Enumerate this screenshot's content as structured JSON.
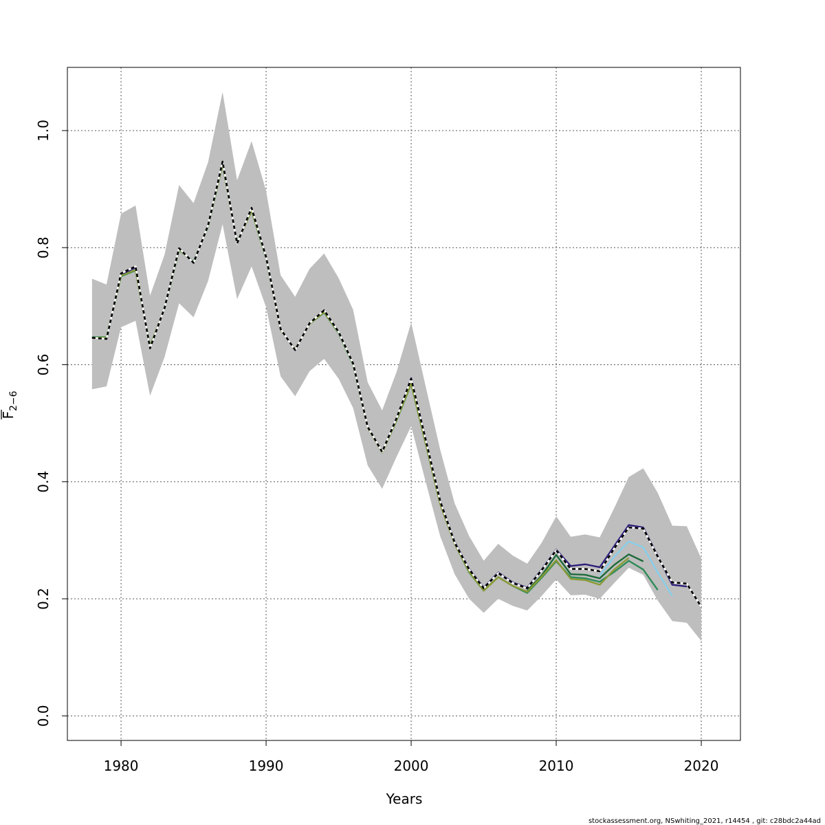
{
  "chart_data": {
    "type": "line",
    "xlabel": "Years",
    "ylabel_main": "F",
    "ylabel_sub": "2−6",
    "footer": "stockassessment.org, NSwhiting_2021, r14454 , git: c28bdc2a44ad",
    "xlim": [
      1976.3,
      2022.7
    ],
    "ylim": [
      -0.042,
      1.108
    ],
    "x_ticks": [
      1980,
      1990,
      2000,
      2010,
      2020
    ],
    "x_tick_labels": [
      "1980",
      "1990",
      "2000",
      "2010",
      "2020"
    ],
    "y_ticks": [
      0,
      0.2,
      0.4,
      0.6,
      0.8,
      1.0
    ],
    "y_tick_labels": [
      "0.0",
      "0.2",
      "0.4",
      "0.6",
      "0.8",
      "1.0"
    ],
    "grid": true,
    "ci_band": {
      "color": "#bebebe",
      "x": [
        1978,
        1979,
        1980,
        1981,
        1982,
        1983,
        1984,
        1985,
        1986,
        1987,
        1988,
        1989,
        1990,
        1991,
        1992,
        1993,
        1994,
        1995,
        1996,
        1997,
        1998,
        1999,
        2000,
        2001,
        2002,
        2003,
        2004,
        2005,
        2006,
        2007,
        2008,
        2009,
        2010,
        2011,
        2012,
        2013,
        2014,
        2015,
        2016,
        2017,
        2018,
        2019,
        2020
      ],
      "upper": [
        0.747,
        0.737,
        0.858,
        0.872,
        0.718,
        0.788,
        0.907,
        0.876,
        0.946,
        1.066,
        0.915,
        0.982,
        0.897,
        0.753,
        0.716,
        0.764,
        0.79,
        0.748,
        0.694,
        0.57,
        0.522,
        0.588,
        0.672,
        0.563,
        0.455,
        0.363,
        0.307,
        0.265,
        0.294,
        0.274,
        0.26,
        0.296,
        0.341,
        0.306,
        0.31,
        0.305,
        0.355,
        0.408,
        0.423,
        0.381,
        0.325,
        0.324,
        0.269
      ],
      "lower": [
        0.558,
        0.563,
        0.664,
        0.675,
        0.547,
        0.613,
        0.705,
        0.681,
        0.743,
        0.84,
        0.712,
        0.768,
        0.698,
        0.58,
        0.546,
        0.589,
        0.61,
        0.576,
        0.526,
        0.428,
        0.388,
        0.443,
        0.495,
        0.4,
        0.307,
        0.242,
        0.2,
        0.176,
        0.2,
        0.188,
        0.18,
        0.205,
        0.233,
        0.206,
        0.207,
        0.2,
        0.227,
        0.253,
        0.241,
        0.197,
        0.162,
        0.159,
        0.128
      ]
    },
    "series": [
      {
        "color": "#2c1f7a",
        "dashed": false,
        "x": [
          1978,
          1979,
          1980,
          1981,
          1982,
          1983,
          1984,
          1985,
          1986,
          1987,
          1988,
          1989,
          1990,
          1991,
          1992,
          1993,
          1994,
          1995,
          1996,
          1997,
          1998,
          1999,
          2000,
          2001,
          2002,
          2003,
          2004,
          2005,
          2006,
          2007,
          2008,
          2009,
          2010,
          2011,
          2012,
          2013,
          2014,
          2015,
          2016,
          2017,
          2018,
          2019
        ],
        "values": [
          0.646,
          0.644,
          0.754,
          0.766,
          0.629,
          0.697,
          0.798,
          0.774,
          0.838,
          0.947,
          0.807,
          0.867,
          0.784,
          0.661,
          0.625,
          0.671,
          0.693,
          0.656,
          0.602,
          0.494,
          0.451,
          0.509,
          0.577,
          0.473,
          0.368,
          0.297,
          0.251,
          0.219,
          0.245,
          0.228,
          0.219,
          0.25,
          0.284,
          0.256,
          0.259,
          0.254,
          0.29,
          0.326,
          0.322,
          0.273,
          0.224,
          0.221
        ]
      },
      {
        "color": "#87ceeb",
        "dashed": false,
        "x": [
          2013,
          2014,
          2015,
          2016,
          2017,
          2018
        ],
        "values": [
          0.24,
          0.272,
          0.298,
          0.288,
          0.245,
          0.205
        ]
      },
      {
        "color": "#2e8b57",
        "dashed": false,
        "x": [
          1978,
          1979,
          1980,
          1981,
          1982,
          1983,
          1984,
          1985,
          1986,
          1987,
          1988,
          1989,
          1990,
          1991,
          1992,
          1993,
          1994,
          1995,
          1996,
          1997,
          1998,
          1999,
          2000,
          2001,
          2002,
          2003,
          2004,
          2005,
          2006,
          2007,
          2008,
          2009,
          2010,
          2011,
          2012,
          2013,
          2014,
          2015,
          2016,
          2017
        ],
        "values": [
          0.647,
          0.647,
          0.751,
          0.761,
          0.632,
          0.696,
          0.796,
          0.776,
          0.836,
          0.942,
          0.809,
          0.863,
          0.782,
          0.66,
          0.626,
          0.67,
          0.689,
          0.654,
          0.6,
          0.493,
          0.45,
          0.505,
          0.567,
          0.465,
          0.362,
          0.294,
          0.245,
          0.214,
          0.237,
          0.222,
          0.21,
          0.236,
          0.264,
          0.237,
          0.235,
          0.229,
          0.246,
          0.265,
          0.25,
          0.215
        ]
      },
      {
        "color": "#1e6b3a",
        "dashed": false,
        "x": [
          2008,
          2009,
          2010,
          2011,
          2012,
          2013,
          2014,
          2015,
          2016
        ],
        "values": [
          0.214,
          0.24,
          0.275,
          0.242,
          0.241,
          0.235,
          0.258,
          0.276,
          0.264
        ]
      },
      {
        "color": "#8a9a35",
        "dashed": false,
        "x": [
          1978,
          1979,
          1980,
          1981,
          1982,
          1983,
          1984,
          1985,
          1986,
          1987,
          1988,
          1989,
          1990,
          1991,
          1992,
          1993,
          1994,
          1995,
          1996,
          1997,
          1998,
          1999,
          2000,
          2001,
          2002,
          2003,
          2004,
          2005,
          2006,
          2007,
          2008,
          2009,
          2010,
          2011,
          2012,
          2013,
          2014,
          2015
        ],
        "values": [
          0.646,
          0.646,
          0.752,
          0.762,
          0.631,
          0.697,
          0.797,
          0.775,
          0.837,
          0.943,
          0.808,
          0.864,
          0.783,
          0.66,
          0.626,
          0.67,
          0.69,
          0.655,
          0.601,
          0.493,
          0.45,
          0.506,
          0.568,
          0.466,
          0.362,
          0.294,
          0.246,
          0.214,
          0.237,
          0.222,
          0.212,
          0.238,
          0.266,
          0.234,
          0.232,
          0.224,
          0.25,
          0.27
        ]
      },
      {
        "color": "#000000",
        "dashed": true,
        "x": [
          1978,
          1979,
          1980,
          1981,
          1982,
          1983,
          1984,
          1985,
          1986,
          1987,
          1988,
          1989,
          1990,
          1991,
          1992,
          1993,
          1994,
          1995,
          1996,
          1997,
          1998,
          1999,
          2000,
          2001,
          2002,
          2003,
          2004,
          2005,
          2006,
          2007,
          2008,
          2009,
          2010,
          2011,
          2012,
          2013,
          2014,
          2015,
          2016,
          2017,
          2018,
          2019,
          2020
        ],
        "values": [
          0.646,
          0.644,
          0.756,
          0.768,
          0.628,
          0.697,
          0.799,
          0.774,
          0.838,
          0.947,
          0.807,
          0.868,
          0.784,
          0.661,
          0.625,
          0.671,
          0.693,
          0.656,
          0.602,
          0.494,
          0.451,
          0.509,
          0.576,
          0.472,
          0.367,
          0.296,
          0.25,
          0.218,
          0.244,
          0.227,
          0.218,
          0.249,
          0.283,
          0.251,
          0.251,
          0.247,
          0.286,
          0.322,
          0.32,
          0.272,
          0.228,
          0.226,
          0.186
        ]
      }
    ]
  }
}
